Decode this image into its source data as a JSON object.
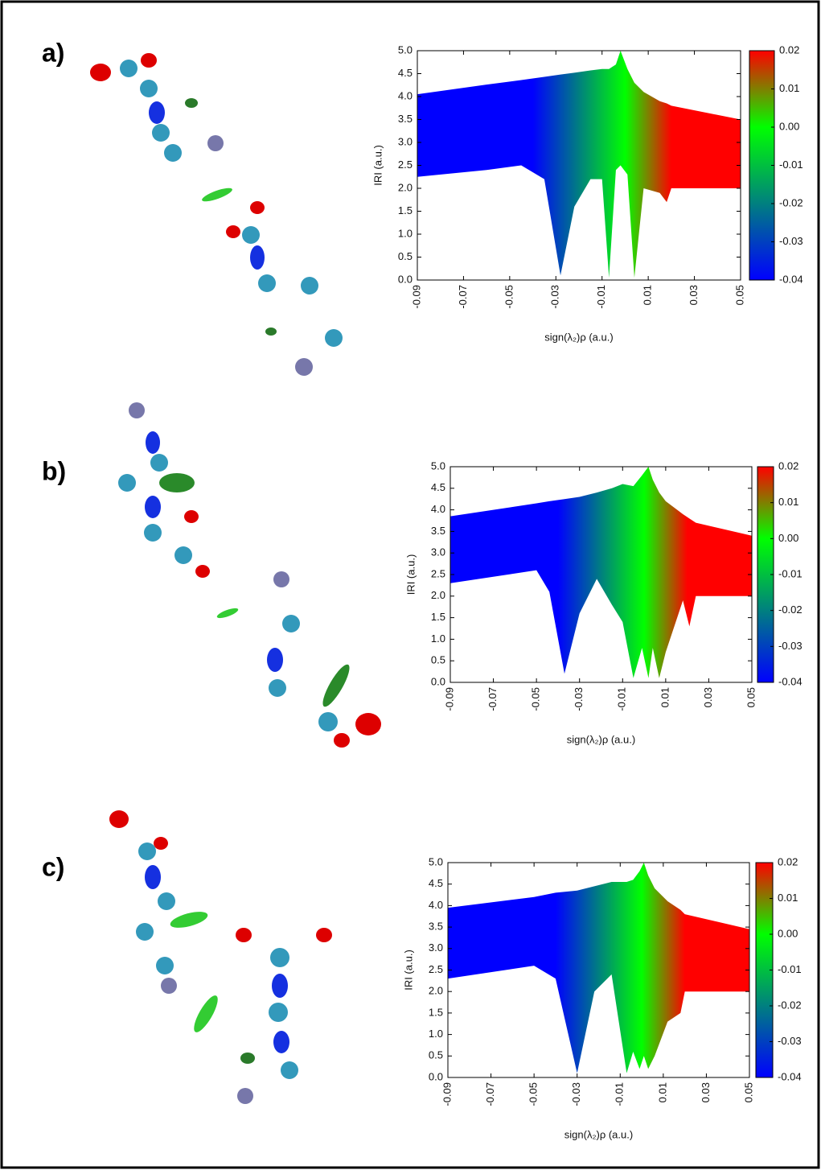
{
  "chart_data": [
    {
      "type": "scatter-band",
      "panel": "a)",
      "ylabel": "IRI (a.u.)",
      "xlabel": "sign(λ₂)ρ (a.u.)",
      "xlim": [
        -0.09,
        0.05
      ],
      "xticks": [
        -0.09,
        -0.07,
        -0.05,
        -0.03,
        -0.01,
        0.01,
        0.03,
        0.05
      ],
      "ylim": [
        0,
        5
      ],
      "yticks": [
        {
          "value": 0,
          "label": "0.0"
        },
        {
          "value": 0.5,
          "label": "0.5"
        },
        {
          "value": 1,
          "label": "1.0"
        },
        {
          "value": 1.5,
          "label": "1.5"
        },
        {
          "value": 2,
          "label": "2.0"
        },
        {
          "value": 2.5,
          "label": "2.5"
        },
        {
          "value": 3,
          "label": "3.0"
        },
        {
          "value": 3.5,
          "label": "3.5"
        },
        {
          "value": 4,
          "label": "4.0"
        },
        {
          "value": 4.5,
          "label": "4.5"
        },
        {
          "value": 5,
          "label": "5.0"
        }
      ],
      "clim": [
        -0.04,
        0.02
      ],
      "cticks": [
        0.02,
        0.01,
        {
          "value": 0,
          "label": "0.00"
        },
        -0.01,
        -0.02,
        -0.03,
        -0.04
      ],
      "colormap": [
        {
          "value": -0.04,
          "color": "#0000ff"
        },
        {
          "value": 0,
          "color": "#00ff00"
        },
        {
          "value": 0.02,
          "color": "#ff0000"
        }
      ],
      "x": [
        -0.09,
        -0.06,
        -0.045,
        -0.035,
        -0.028,
        -0.022,
        -0.015,
        -0.01,
        -0.007,
        -0.004,
        -0.002,
        0.001,
        0.004,
        0.008,
        0.015,
        0.018,
        0.02,
        0.05
      ],
      "series": [
        {
          "values": [
            4.05,
            4.26,
            4.36,
            4.43,
            4.48,
            4.52,
            4.57,
            4.6,
            4.6,
            4.7,
            5.0,
            4.6,
            4.3,
            4.1,
            3.9,
            3.85,
            3.8,
            3.5
          ]
        },
        {
          "values": [
            2.25,
            2.4,
            2.5,
            2.2,
            0.1,
            1.6,
            2.2,
            2.2,
            0.05,
            2.4,
            2.5,
            2.3,
            0.05,
            2.0,
            1.9,
            1.7,
            2.0,
            2.0
          ]
        }
      ]
    },
    {
      "type": "scatter-band",
      "panel": "b)",
      "ylabel": "IRI (a.u.)",
      "xlabel": "sign(λ₂)ρ (a.u.)",
      "xlim": [
        -0.09,
        0.05
      ],
      "xticks": [
        -0.09,
        -0.07,
        -0.05,
        -0.03,
        -0.01,
        0.01,
        0.03,
        0.05
      ],
      "ylim": [
        0,
        5
      ],
      "yticks": [
        {
          "value": 0,
          "label": "0.0"
        },
        {
          "value": 0.5,
          "label": "0.5"
        },
        {
          "value": 1,
          "label": "1.0"
        },
        {
          "value": 1.5,
          "label": "1.5"
        },
        {
          "value": 2,
          "label": "2.0"
        },
        {
          "value": 2.5,
          "label": "2.5"
        },
        {
          "value": 3,
          "label": "3.0"
        },
        {
          "value": 3.5,
          "label": "3.5"
        },
        {
          "value": 4,
          "label": "4.0"
        },
        {
          "value": 4.5,
          "label": "4.5"
        },
        {
          "value": 5,
          "label": "5.0"
        }
      ],
      "clim": [
        -0.04,
        0.02
      ],
      "cticks": [
        0.02,
        0.01,
        {
          "value": 0,
          "label": "0.00"
        },
        -0.01,
        -0.02,
        -0.03,
        -0.04
      ],
      "colormap": [
        {
          "value": -0.04,
          "color": "#0000ff"
        },
        {
          "value": 0,
          "color": "#00ff00"
        },
        {
          "value": 0.02,
          "color": "#ff0000"
        }
      ],
      "x": [
        -0.09,
        -0.05,
        -0.044,
        -0.037,
        -0.03,
        -0.022,
        -0.015,
        -0.01,
        -0.005,
        -0.001,
        0.002,
        0.004,
        0.007,
        0.01,
        0.018,
        0.021,
        0.024,
        0.05
      ],
      "series": [
        {
          "values": [
            3.85,
            4.15,
            4.2,
            4.25,
            4.3,
            4.4,
            4.5,
            4.6,
            4.55,
            4.8,
            5.0,
            4.7,
            4.4,
            4.2,
            3.9,
            3.8,
            3.7,
            3.4
          ]
        },
        {
          "values": [
            2.3,
            2.6,
            2.1,
            0.2,
            1.6,
            2.4,
            1.8,
            1.4,
            0.1,
            0.8,
            0.1,
            0.8,
            0.1,
            0.7,
            1.9,
            1.3,
            2.0,
            2.0
          ]
        }
      ]
    },
    {
      "type": "scatter-band",
      "panel": "c)",
      "ylabel": "IRI (a.u.)",
      "xlabel": "sign(λ₂)ρ (a.u.)",
      "xlim": [
        -0.09,
        0.05
      ],
      "xticks": [
        -0.09,
        -0.07,
        -0.05,
        -0.03,
        -0.01,
        0.01,
        0.03,
        0.05
      ],
      "ylim": [
        0,
        5
      ],
      "yticks": [
        {
          "value": 0,
          "label": "0.0"
        },
        {
          "value": 0.5,
          "label": "0.5"
        },
        {
          "value": 1,
          "label": "1.0"
        },
        {
          "value": 1.5,
          "label": "1.5"
        },
        {
          "value": 2,
          "label": "2.0"
        },
        {
          "value": 2.5,
          "label": "2.5"
        },
        {
          "value": 3,
          "label": "3.0"
        },
        {
          "value": 3.5,
          "label": "3.5"
        },
        {
          "value": 4,
          "label": "4.0"
        },
        {
          "value": 4.5,
          "label": "4.5"
        },
        {
          "value": 5,
          "label": "5.0"
        }
      ],
      "clim": [
        -0.04,
        0.02
      ],
      "cticks": [
        0.02,
        0.01,
        {
          "value": 0,
          "label": "0.00"
        },
        -0.01,
        -0.02,
        -0.03,
        -0.04
      ],
      "colormap": [
        {
          "value": -0.04,
          "color": "#0000ff"
        },
        {
          "value": 0,
          "color": "#00ff00"
        },
        {
          "value": 0.02,
          "color": "#ff0000"
        }
      ],
      "x": [
        -0.09,
        -0.05,
        -0.04,
        -0.03,
        -0.022,
        -0.014,
        -0.007,
        -0.004,
        -0.001,
        0.001,
        0.003,
        0.006,
        0.012,
        0.018,
        0.02,
        0.05
      ],
      "series": [
        {
          "values": [
            3.95,
            4.2,
            4.3,
            4.35,
            4.45,
            4.55,
            4.55,
            4.6,
            4.8,
            5.0,
            4.7,
            4.4,
            4.1,
            3.9,
            3.8,
            3.45
          ]
        },
        {
          "values": [
            2.3,
            2.6,
            2.3,
            0.1,
            2.0,
            2.4,
            0.1,
            0.6,
            0.2,
            0.5,
            0.2,
            0.5,
            1.3,
            1.5,
            2.0,
            2.0
          ]
        }
      ]
    }
  ]
}
